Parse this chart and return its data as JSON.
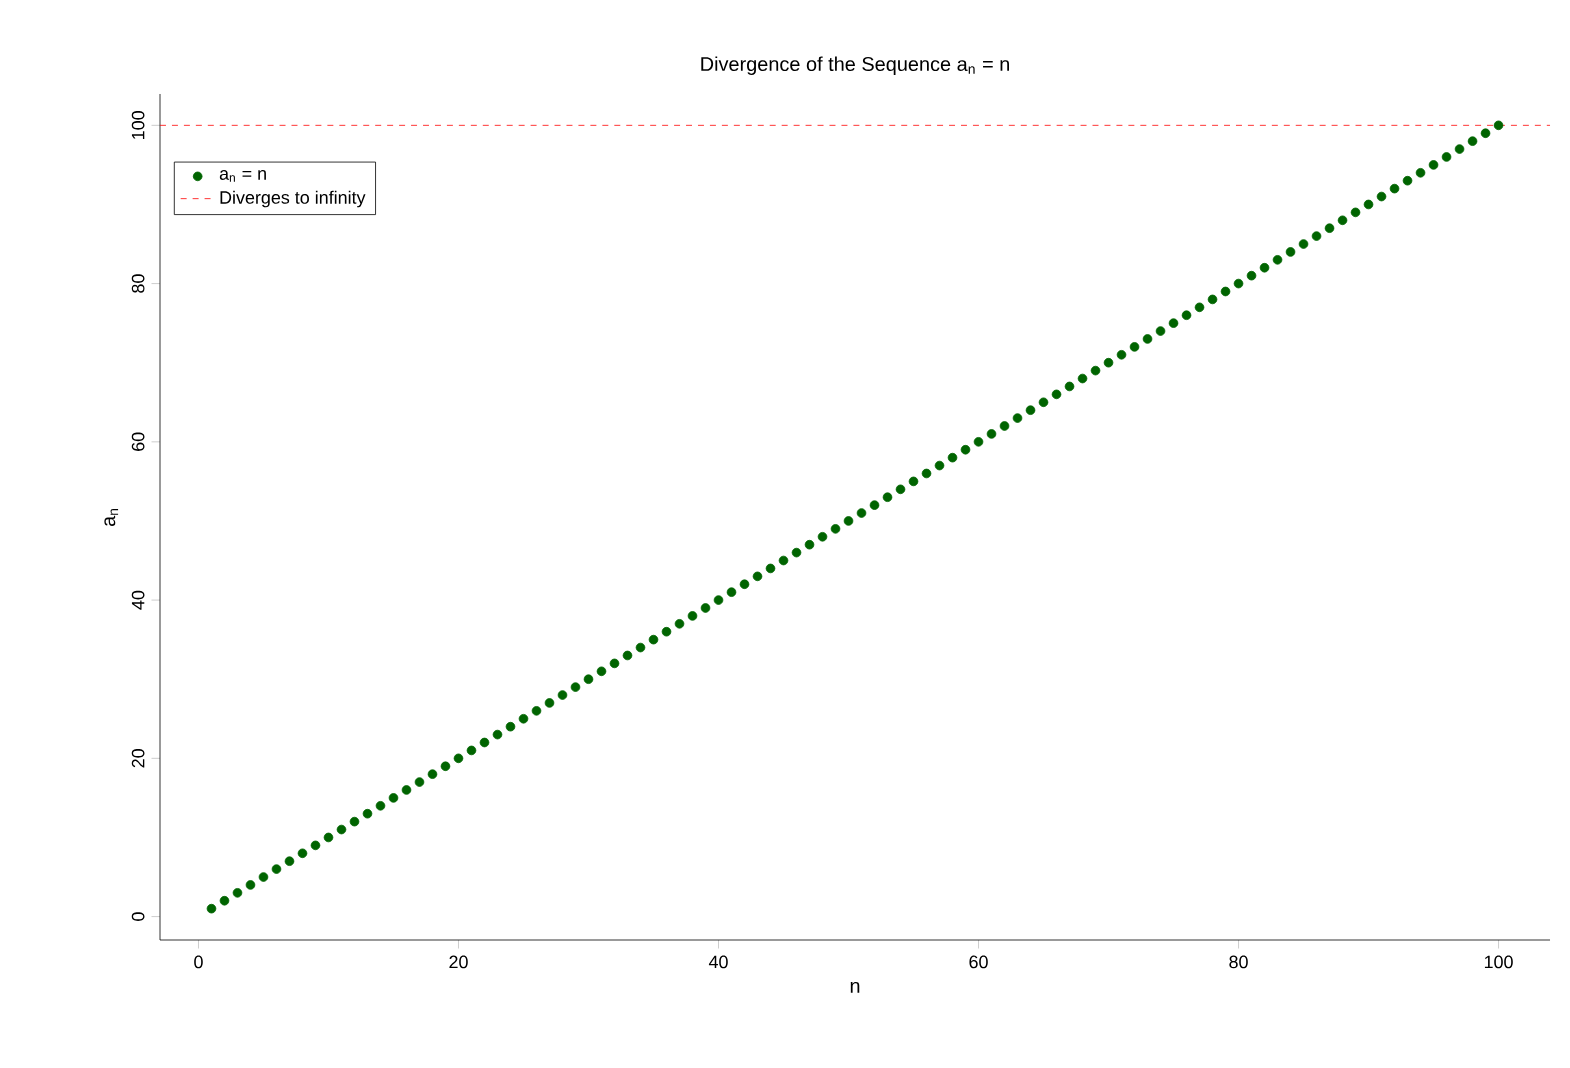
{
  "chart_data": {
    "type": "scatter",
    "title": "Divergence of the Sequence  a$_{n}$ = n",
    "xlabel": "n",
    "ylabel": "a$_{n}$",
    "x": [
      1,
      2,
      3,
      4,
      5,
      6,
      7,
      8,
      9,
      10,
      11,
      12,
      13,
      14,
      15,
      16,
      17,
      18,
      19,
      20,
      21,
      22,
      23,
      24,
      25,
      26,
      27,
      28,
      29,
      30,
      31,
      32,
      33,
      34,
      35,
      36,
      37,
      38,
      39,
      40,
      41,
      42,
      43,
      44,
      45,
      46,
      47,
      48,
      49,
      50,
      51,
      52,
      53,
      54,
      55,
      56,
      57,
      58,
      59,
      60,
      61,
      62,
      63,
      64,
      65,
      66,
      67,
      68,
      69,
      70,
      71,
      72,
      73,
      74,
      75,
      76,
      77,
      78,
      79,
      80,
      81,
      82,
      83,
      84,
      85,
      86,
      87,
      88,
      89,
      90,
      91,
      92,
      93,
      94,
      95,
      96,
      97,
      98,
      99,
      100
    ],
    "series": [
      {
        "name": "a$_{n}$ = n",
        "color": "#006400",
        "values": [
          1,
          2,
          3,
          4,
          5,
          6,
          7,
          8,
          9,
          10,
          11,
          12,
          13,
          14,
          15,
          16,
          17,
          18,
          19,
          20,
          21,
          22,
          23,
          24,
          25,
          26,
          27,
          28,
          29,
          30,
          31,
          32,
          33,
          34,
          35,
          36,
          37,
          38,
          39,
          40,
          41,
          42,
          43,
          44,
          45,
          46,
          47,
          48,
          49,
          50,
          51,
          52,
          53,
          54,
          55,
          56,
          57,
          58,
          59,
          60,
          61,
          62,
          63,
          64,
          65,
          66,
          67,
          68,
          69,
          70,
          71,
          72,
          73,
          74,
          75,
          76,
          77,
          78,
          79,
          80,
          81,
          82,
          83,
          84,
          85,
          86,
          87,
          88,
          89,
          90,
          91,
          92,
          93,
          94,
          95,
          96,
          97,
          98,
          99,
          100
        ]
      }
    ],
    "ref_lines": [
      {
        "axis": "y",
        "value": 100,
        "label": "Diverges to infinity",
        "color": "#ff0000",
        "line_style": "dashed"
      }
    ],
    "xlim": [
      -2.96,
      103.96
    ],
    "ylim": [
      -2.96,
      103.96
    ],
    "xticks": [
      0,
      20,
      40,
      60,
      80,
      100
    ],
    "yticks": [
      0,
      20,
      40,
      60,
      80,
      100
    ],
    "legend": "top left",
    "grid": false
  }
}
